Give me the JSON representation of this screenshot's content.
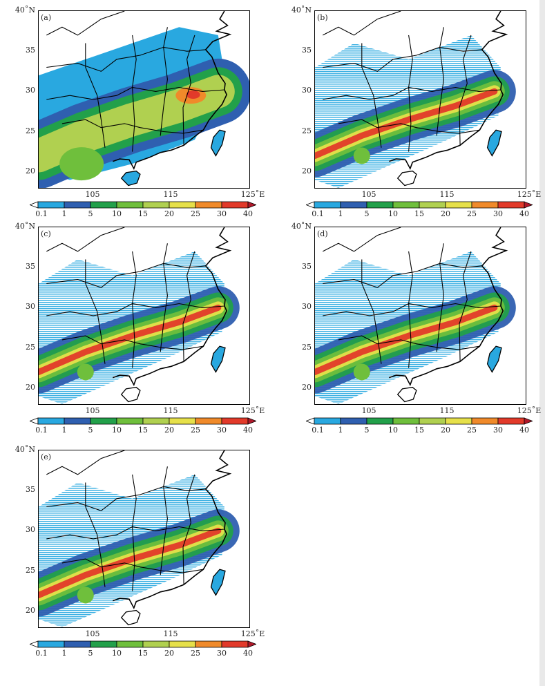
{
  "panels": [
    {
      "label": "(a)"
    },
    {
      "label": "(b)"
    },
    {
      "label": "(c)"
    },
    {
      "label": "(d)"
    },
    {
      "label": "(e)"
    }
  ],
  "axes": {
    "y_ticks": [
      "40˚N",
      "35",
      "30",
      "25",
      "20"
    ],
    "x_ticks": [
      "105",
      "115",
      "125˚E"
    ]
  },
  "colorbar": {
    "values": [
      "0.1",
      "1",
      "5",
      "10",
      "15",
      "20",
      "25",
      "30",
      "40"
    ],
    "colors": [
      "#ffffff",
      "#29a8e0",
      "#2f5fb0",
      "#22a04a",
      "#6fbf3c",
      "#b0d050",
      "#e6e04a",
      "#f08a2a",
      "#e23a2a",
      "#b0182a"
    ]
  }
}
